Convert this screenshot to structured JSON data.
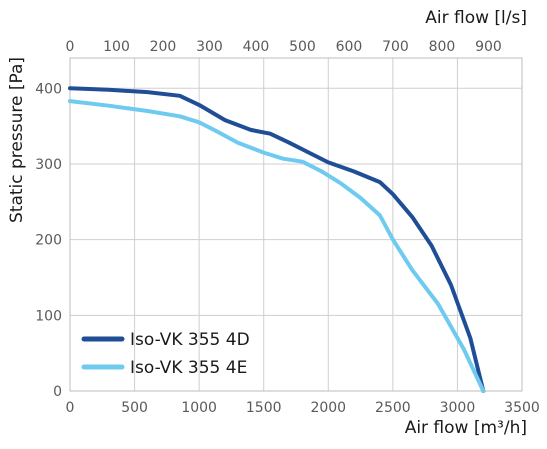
{
  "chart_data": {
    "type": "line",
    "top_axis": {
      "label": "Air flow [l/s]",
      "ticks": [
        "0",
        "100",
        "200",
        "300",
        "400",
        "500",
        "600",
        "700",
        "800",
        "900"
      ],
      "range": [
        0,
        972.2
      ]
    },
    "x_axis": {
      "label": "Air flow [m³/h]",
      "ticks": [
        "0",
        "500",
        "1000",
        "1500",
        "2000",
        "2500",
        "3000",
        "3500"
      ],
      "range": [
        0,
        3500
      ]
    },
    "y_axis": {
      "label": "Static pressure [Pa]",
      "ticks": [
        "0",
        "100",
        "200",
        "300",
        "400"
      ],
      "range": [
        0,
        440
      ]
    },
    "grid": true,
    "legend_position": "bottom-left",
    "series": [
      {
        "name": "Iso-VK 355 4D",
        "color": "#1f4e96",
        "points": [
          [
            0,
            400
          ],
          [
            300,
            398
          ],
          [
            600,
            395
          ],
          [
            850,
            390
          ],
          [
            1000,
            378
          ],
          [
            1200,
            358
          ],
          [
            1400,
            345
          ],
          [
            1550,
            340
          ],
          [
            1700,
            328
          ],
          [
            1850,
            315
          ],
          [
            2000,
            302
          ],
          [
            2200,
            290
          ],
          [
            2400,
            276
          ],
          [
            2500,
            260
          ],
          [
            2650,
            230
          ],
          [
            2800,
            192
          ],
          [
            2950,
            140
          ],
          [
            3100,
            70
          ],
          [
            3200,
            0
          ]
        ]
      },
      {
        "name": "Iso-VK 355 4E",
        "color": "#6ecbef",
        "points": [
          [
            0,
            383
          ],
          [
            300,
            377
          ],
          [
            600,
            370
          ],
          [
            850,
            363
          ],
          [
            1000,
            355
          ],
          [
            1150,
            342
          ],
          [
            1300,
            328
          ],
          [
            1500,
            315
          ],
          [
            1650,
            307
          ],
          [
            1800,
            303
          ],
          [
            1950,
            290
          ],
          [
            2100,
            274
          ],
          [
            2250,
            255
          ],
          [
            2400,
            232
          ],
          [
            2500,
            200
          ],
          [
            2650,
            160
          ],
          [
            2850,
            115
          ],
          [
            3050,
            55
          ],
          [
            3200,
            0
          ]
        ]
      }
    ]
  }
}
